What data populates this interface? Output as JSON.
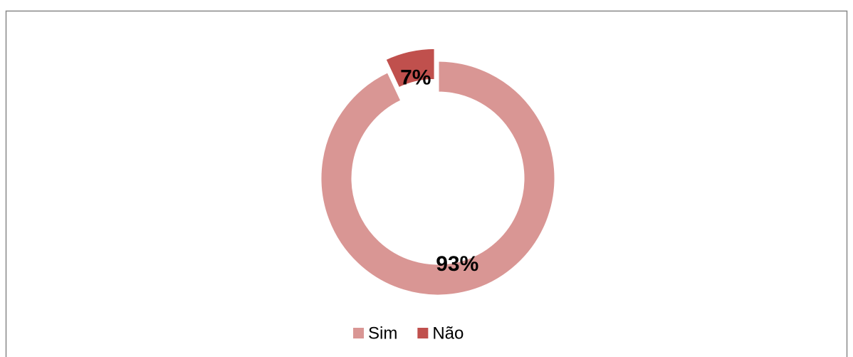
{
  "chart_data": {
    "type": "donut",
    "categories": [
      "Sim",
      "Não"
    ],
    "values": [
      93,
      7
    ],
    "value_labels": [
      "93%",
      "7%"
    ],
    "colors": [
      "#d99694",
      "#c0504d"
    ],
    "legend": "bottom"
  }
}
